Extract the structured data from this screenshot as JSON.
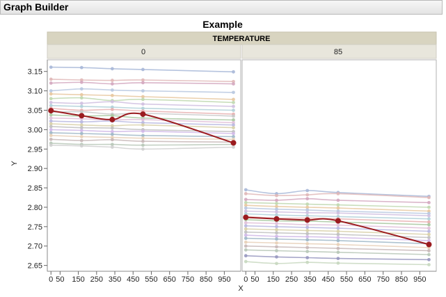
{
  "window": {
    "title": "Graph Builder"
  },
  "chart_data": {
    "type": "line",
    "title": "Example",
    "facet_label": "TEMPERATURE",
    "facets": [
      "0",
      "85"
    ],
    "xlabel": "X",
    "ylabel": "Y",
    "ylim": [
      2.635,
      3.18
    ],
    "yticks": [
      2.65,
      2.7,
      2.75,
      2.8,
      2.85,
      2.9,
      2.95,
      3.0,
      3.05,
      3.1,
      3.15
    ],
    "yticklabels": [
      "2.65",
      "2.70",
      "2.75",
      "2.80",
      "2.85",
      "2.90",
      "2.95",
      "3.00",
      "3.05",
      "3.10",
      "3.15"
    ],
    "xlim": [
      -20,
      1040
    ],
    "xticks": [
      0,
      50,
      150,
      250,
      350,
      450,
      550,
      650,
      750,
      850,
      950
    ],
    "xticklabels": [
      "0",
      "50",
      "150",
      "250",
      "350",
      "450",
      "550",
      "650",
      "750",
      "850",
      "950"
    ],
    "x": [
      0,
      168,
      336,
      504,
      1000
    ],
    "mean_series": [
      {
        "facet": "0",
        "values": [
          3.049,
          3.036,
          3.026,
          3.04,
          2.966
        ]
      },
      {
        "facet": "85",
        "values": [
          2.774,
          2.77,
          2.767,
          2.765,
          2.704
        ]
      }
    ],
    "background_series": [
      {
        "facet": "0",
        "values": [
          3.161,
          3.16,
          3.157,
          3.155,
          3.149
        ],
        "color": "#a8b8d8"
      },
      {
        "facet": "0",
        "values": [
          3.13,
          3.128,
          3.127,
          3.128,
          3.124
        ],
        "color": "#e0b8b8"
      },
      {
        "facet": "0",
        "values": [
          3.12,
          3.122,
          3.118,
          3.121,
          3.118
        ],
        "color": "#d4a8c0"
      },
      {
        "facet": "0",
        "values": [
          3.1,
          3.105,
          3.102,
          3.1,
          3.096
        ],
        "color": "#b8c8e0"
      },
      {
        "facet": "0",
        "values": [
          3.092,
          3.09,
          3.088,
          3.085,
          3.078
        ],
        "color": "#e8c8a0"
      },
      {
        "facet": "0",
        "values": [
          3.08,
          3.082,
          3.075,
          3.078,
          3.07
        ],
        "color": "#c0d8b0"
      },
      {
        "facet": "0",
        "values": [
          3.07,
          3.068,
          3.072,
          3.066,
          3.06
        ],
        "color": "#d0c0e0"
      },
      {
        "facet": "0",
        "values": [
          3.062,
          3.06,
          3.058,
          3.055,
          3.05
        ],
        "color": "#b0d0d8"
      },
      {
        "facet": "0",
        "values": [
          3.055,
          3.05,
          3.052,
          3.048,
          3.04
        ],
        "color": "#e8b0b0"
      },
      {
        "facet": "0",
        "values": [
          3.045,
          3.046,
          3.04,
          3.042,
          3.035
        ],
        "color": "#c8c8c8"
      },
      {
        "facet": "0",
        "values": [
          3.038,
          3.035,
          3.036,
          3.03,
          3.025
        ],
        "color": "#a8c8a0"
      },
      {
        "facet": "0",
        "values": [
          3.03,
          3.028,
          3.025,
          3.026,
          3.018
        ],
        "color": "#e0c0d8"
      },
      {
        "facet": "0",
        "values": [
          3.022,
          3.02,
          3.022,
          3.018,
          3.012
        ],
        "color": "#b8b8e0"
      },
      {
        "facet": "0",
        "values": [
          3.015,
          3.012,
          3.01,
          3.012,
          3.005
        ],
        "color": "#d8d0a8"
      },
      {
        "facet": "0",
        "values": [
          3.008,
          3.005,
          3.004,
          3.0,
          2.995
        ],
        "color": "#c0c0c0"
      },
      {
        "facet": "0",
        "values": [
          3.0,
          2.998,
          2.995,
          2.996,
          2.99
        ],
        "color": "#d0b8e8"
      },
      {
        "facet": "0",
        "values": [
          2.992,
          2.99,
          2.988,
          2.985,
          2.982
        ],
        "color": "#a0b8c8"
      },
      {
        "facet": "0",
        "values": [
          2.985,
          2.982,
          2.98,
          2.978,
          2.975
        ],
        "color": "#e8d0b8"
      },
      {
        "facet": "0",
        "values": [
          2.975,
          2.972,
          2.974,
          2.97,
          2.968
        ],
        "color": "#c8b8b8"
      },
      {
        "facet": "0",
        "values": [
          2.965,
          2.962,
          2.962,
          2.96,
          2.962
        ],
        "color": "#b8c8b8"
      },
      {
        "facet": "0",
        "values": [
          2.96,
          2.958,
          2.955,
          2.95,
          2.955
        ],
        "color": "#d0d0d0"
      },
      {
        "facet": "85",
        "values": [
          2.845,
          2.835,
          2.843,
          2.838,
          2.828
        ],
        "color": "#a8b8d8"
      },
      {
        "facet": "85",
        "values": [
          2.835,
          2.83,
          2.832,
          2.835,
          2.825
        ],
        "color": "#e0b8b8"
      },
      {
        "facet": "85",
        "values": [
          2.82,
          2.818,
          2.822,
          2.818,
          2.812
        ],
        "color": "#d4a8c0"
      },
      {
        "facet": "85",
        "values": [
          2.812,
          2.81,
          2.808,
          2.806,
          2.8
        ],
        "color": "#c0d8b0"
      },
      {
        "facet": "85",
        "values": [
          2.805,
          2.802,
          2.8,
          2.798,
          2.79
        ],
        "color": "#e8c8a0"
      },
      {
        "facet": "85",
        "values": [
          2.798,
          2.795,
          2.793,
          2.79,
          2.784
        ],
        "color": "#b8c8e0"
      },
      {
        "facet": "85",
        "values": [
          2.79,
          2.788,
          2.786,
          2.785,
          2.778
        ],
        "color": "#d0c0e0"
      },
      {
        "facet": "85",
        "values": [
          2.783,
          2.78,
          2.778,
          2.776,
          2.77
        ],
        "color": "#b0d0d8"
      },
      {
        "facet": "85",
        "values": [
          2.776,
          2.772,
          2.772,
          2.77,
          2.762
        ],
        "color": "#e8b0b0"
      },
      {
        "facet": "85",
        "values": [
          2.768,
          2.765,
          2.764,
          2.762,
          2.755
        ],
        "color": "#a8c8a0"
      },
      {
        "facet": "85",
        "values": [
          2.76,
          2.758,
          2.755,
          2.754,
          2.746
        ],
        "color": "#e0c0d8"
      },
      {
        "facet": "85",
        "values": [
          2.752,
          2.75,
          2.748,
          2.746,
          2.738
        ],
        "color": "#b8b8e0"
      },
      {
        "facet": "85",
        "values": [
          2.744,
          2.742,
          2.74,
          2.738,
          2.73
        ],
        "color": "#d8d0a8"
      },
      {
        "facet": "85",
        "values": [
          2.736,
          2.734,
          2.732,
          2.73,
          2.722
        ],
        "color": "#c0c0c0"
      },
      {
        "facet": "85",
        "values": [
          2.728,
          2.725,
          2.724,
          2.722,
          2.714
        ],
        "color": "#d0b8e8"
      },
      {
        "facet": "85",
        "values": [
          2.72,
          2.718,
          2.716,
          2.714,
          2.706
        ],
        "color": "#a0b8c8"
      },
      {
        "facet": "85",
        "values": [
          2.71,
          2.708,
          2.706,
          2.704,
          2.696
        ],
        "color": "#e8d0b8"
      },
      {
        "facet": "85",
        "values": [
          2.7,
          2.698,
          2.696,
          2.694,
          2.688
        ],
        "color": "#c8b8b8"
      },
      {
        "facet": "85",
        "values": [
          2.69,
          2.688,
          2.686,
          2.684,
          2.678
        ],
        "color": "#b8c8b8"
      },
      {
        "facet": "85",
        "values": [
          2.675,
          2.672,
          2.67,
          2.668,
          2.665
        ],
        "color": "#9898c0"
      },
      {
        "facet": "85",
        "values": [
          2.66,
          2.655,
          2.658,
          2.656,
          2.652
        ],
        "color": "#c8d8c0"
      }
    ],
    "colors": {
      "mean": "#9b1b1f",
      "header_bg": "#d8d4c0",
      "facet_bg": "#e8e6dc",
      "grid_edge": "#b0b0b0"
    },
    "legend": "none",
    "grid": false
  }
}
